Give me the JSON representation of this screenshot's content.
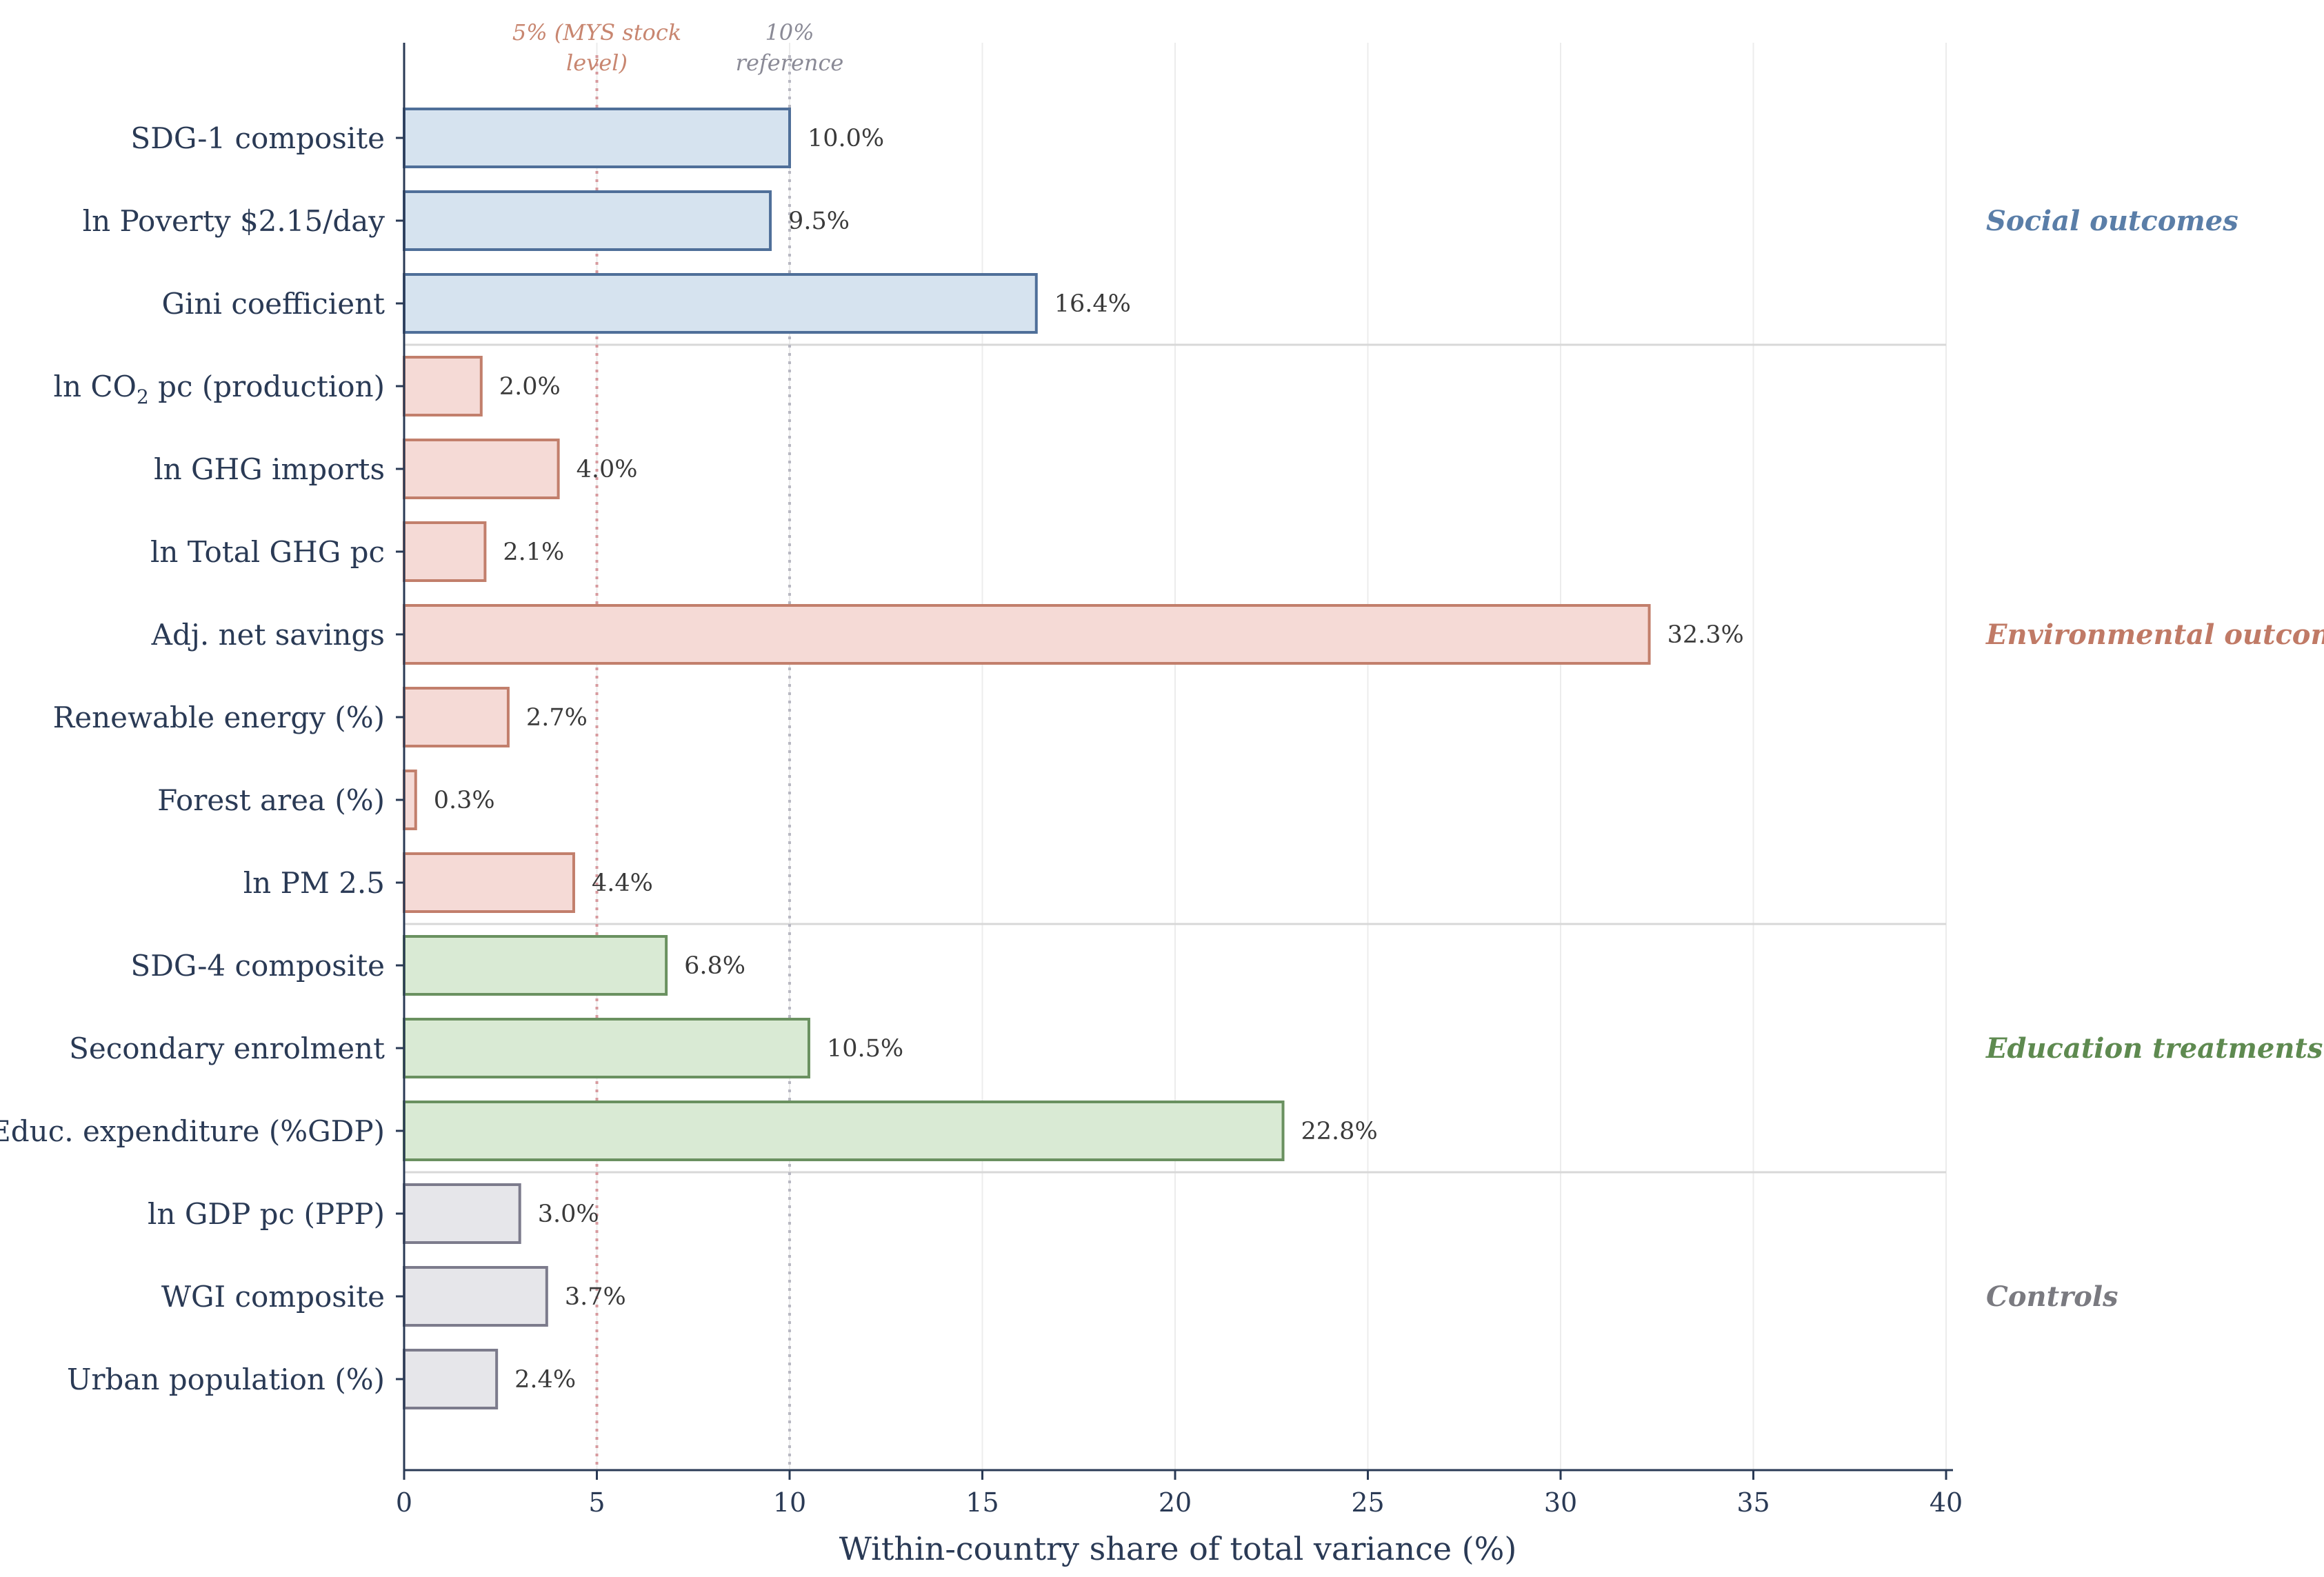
{
  "chart_data": {
    "type": "bar",
    "orientation": "horizontal",
    "xlabel": "Within-country share of total variance (%)",
    "xlim": [
      0,
      40
    ],
    "xticks": [
      0,
      5,
      10,
      15,
      20,
      25,
      30,
      35,
      40
    ],
    "grid": "vertical",
    "reference_lines": [
      {
        "x": 5,
        "label_lines": [
          "5% (MYS stock",
          "level)"
        ],
        "color": "#d79a9e"
      },
      {
        "x": 10,
        "label_lines": [
          "10%",
          "reference"
        ],
        "color": "#b8b8c2"
      }
    ],
    "groups": [
      {
        "name": "Social outcomes",
        "color": "#5a7ea8",
        "stroke": "#4f6f99",
        "fill": "#d6e3ef",
        "categories": [
          "SDG-1 composite",
          "ln Poverty $2.15/day",
          "Gini coefficient"
        ],
        "values": [
          10.0,
          9.5,
          16.4
        ],
        "labels": [
          "10.0%",
          "9.5%",
          "16.4%"
        ]
      },
      {
        "name": "Environmental outcomes",
        "color": "#c07a66",
        "stroke": "#c27f6c",
        "fill": "#f5dad6",
        "categories": [
          "ln CO₂ pc (production)",
          "ln GHG imports",
          "ln Total GHG pc",
          "Adj. net savings",
          "Renewable energy (%)",
          "Forest area (%)",
          "ln PM 2.5"
        ],
        "values": [
          2.0,
          4.0,
          2.1,
          32.3,
          2.7,
          0.3,
          4.4
        ],
        "labels": [
          "2.0%",
          "4.0%",
          "2.1%",
          "32.3%",
          "2.7%",
          "0.3%",
          "4.4%"
        ]
      },
      {
        "name": "Education treatments",
        "color": "#5e8a50",
        "stroke": "#6a9160",
        "fill": "#d9ead4",
        "categories": [
          "SDG-4 composite",
          "Secondary enrolment",
          "Educ. expenditure (%GDP)"
        ],
        "values": [
          6.8,
          10.5,
          22.8
        ],
        "labels": [
          "6.8%",
          "10.5%",
          "22.8%"
        ]
      },
      {
        "name": "Controls",
        "color": "#7a7a80",
        "stroke": "#7c7b8c",
        "fill": "#e6e6ea",
        "categories": [
          "ln GDP pc (PPP)",
          "WGI composite",
          "Urban population (%)"
        ],
        "values": [
          3.0,
          3.7,
          2.4
        ],
        "labels": [
          "3.0%",
          "3.7%",
          "2.4%"
        ]
      }
    ]
  }
}
